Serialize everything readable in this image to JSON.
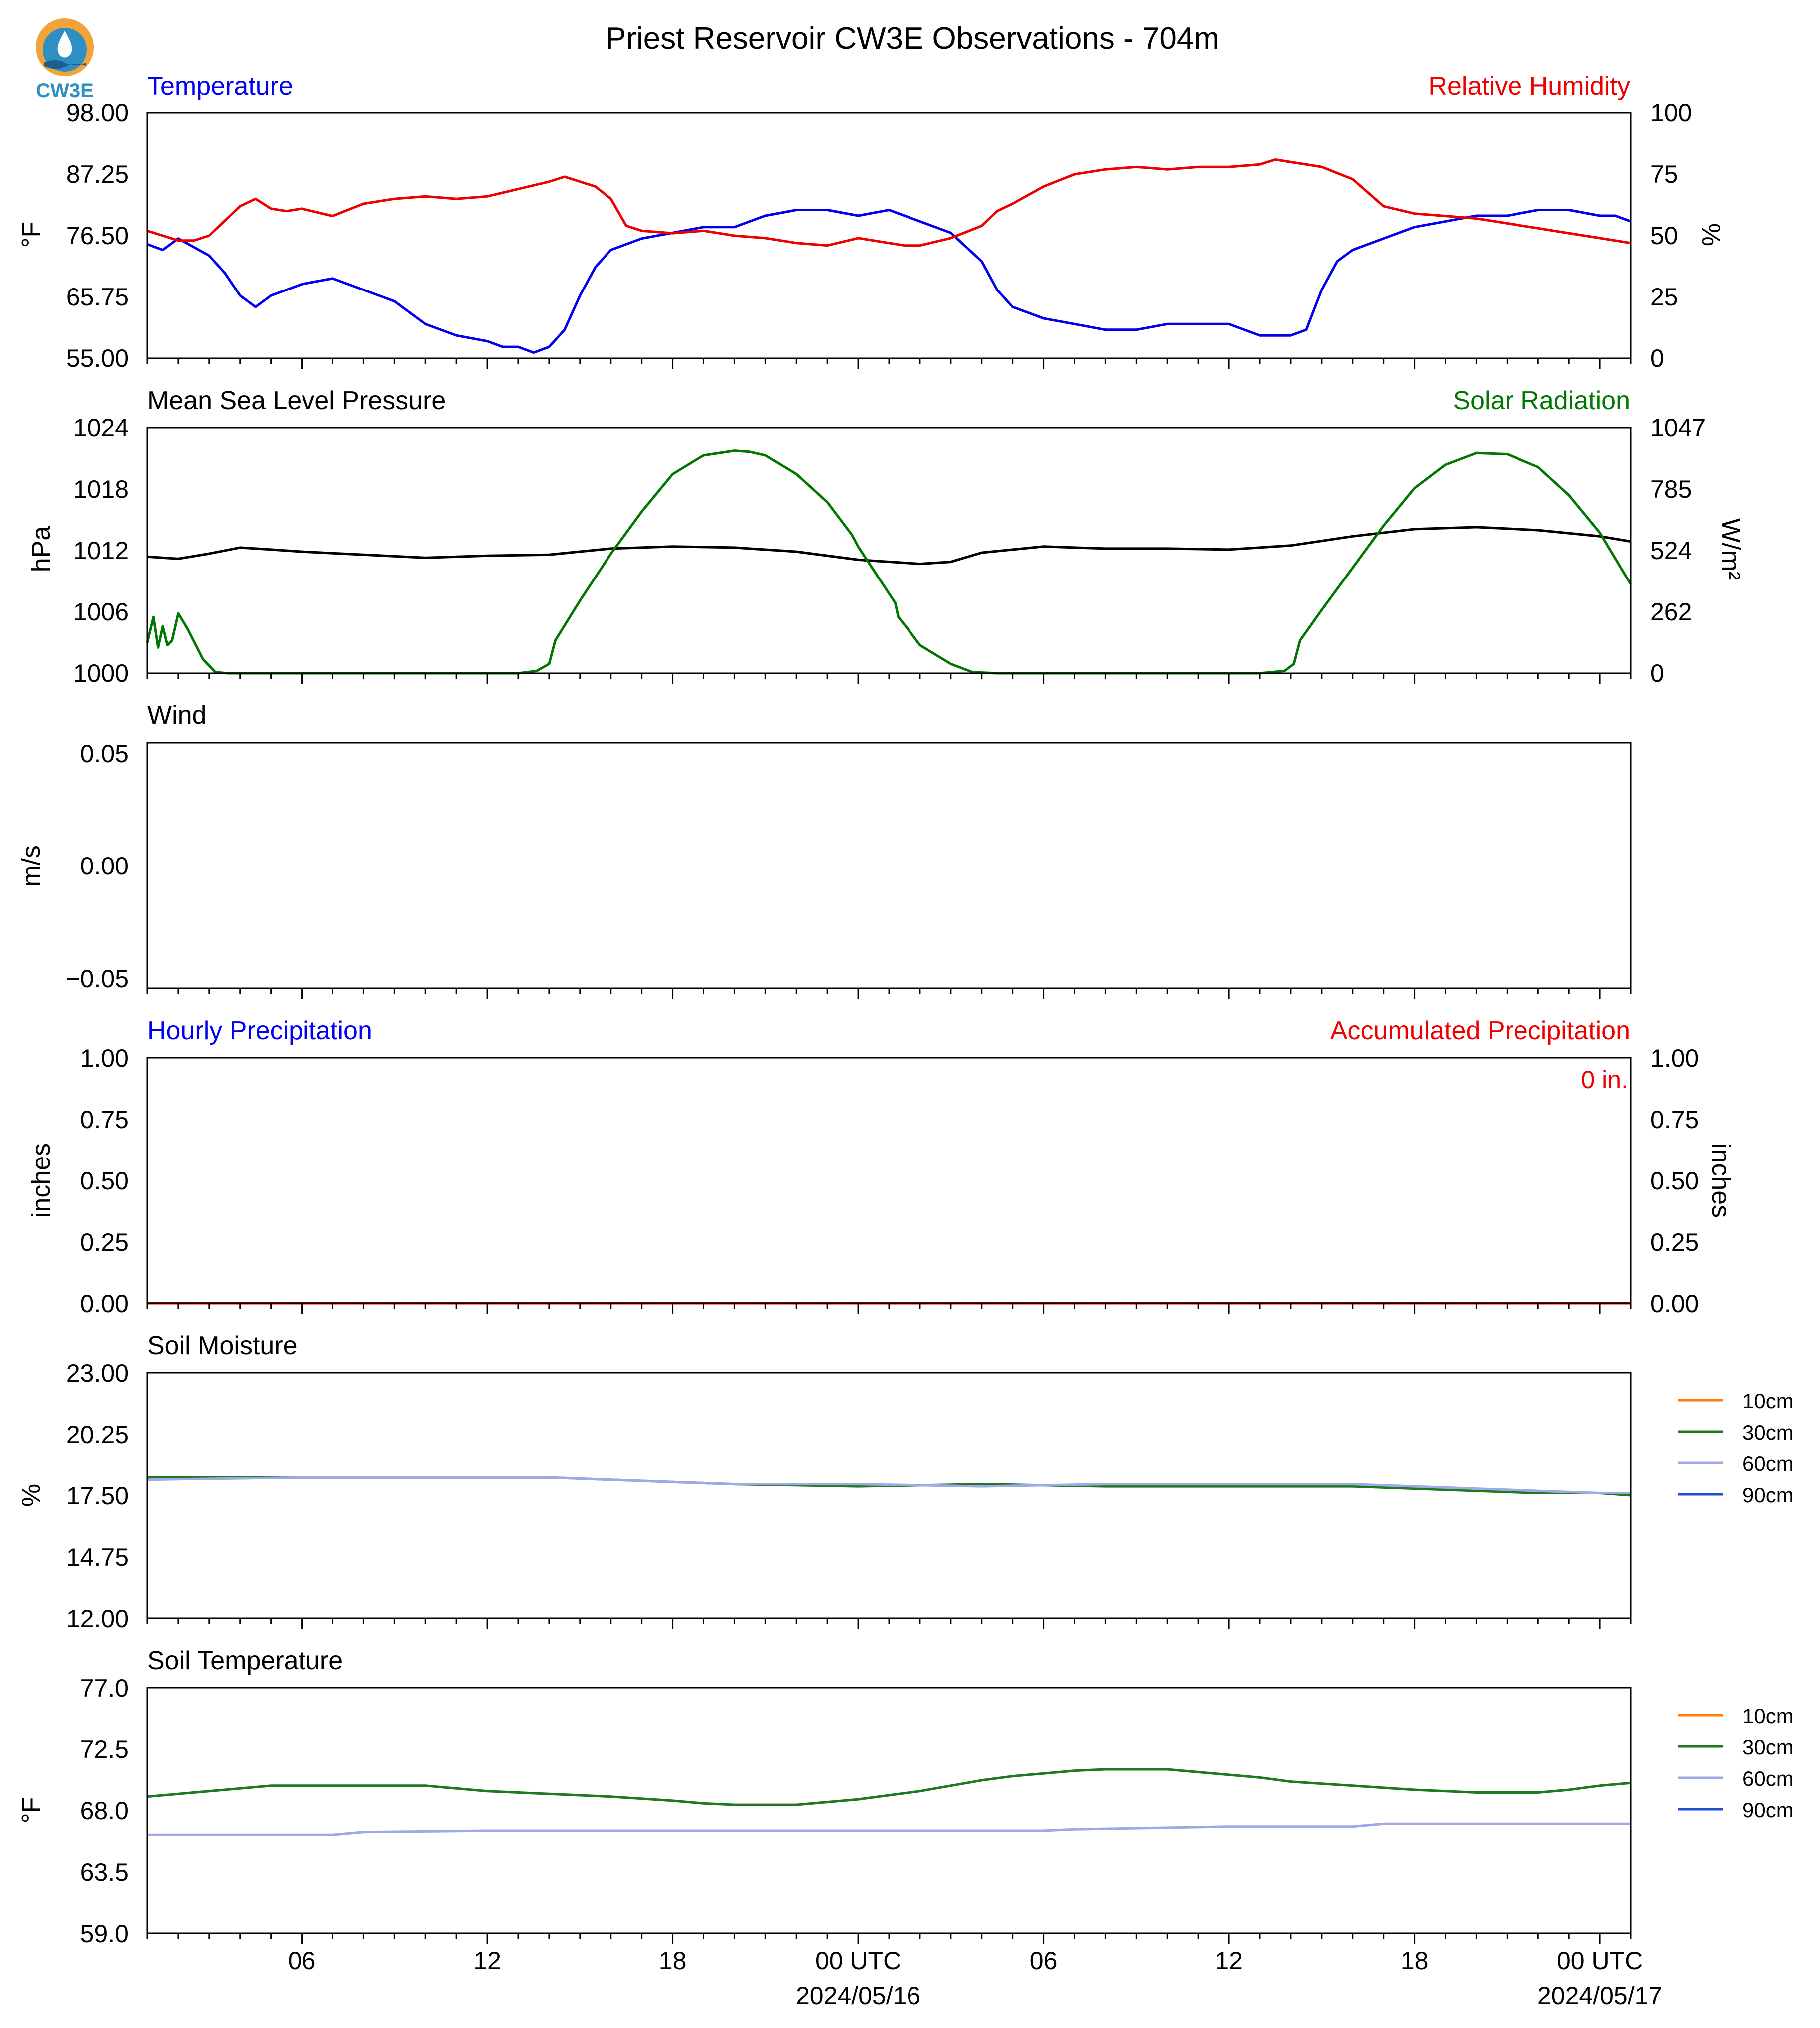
{
  "title": "Priest Reservoir CW3E Observations - 704m",
  "logo_text": "CW3E",
  "colors": {
    "temperature": "#0000ee",
    "humidity": "#ee0000",
    "pressure": "#000000",
    "solar": "#007700",
    "soil_10cm": "#ff7f0e",
    "soil_30cm": "#1f7a1f",
    "soil_60cm": "#9fa8e8",
    "soil_90cm": "#1f4fd0",
    "accum_label": "#ee0000"
  },
  "x_axis": {
    "major_ticks": [
      {
        "hour": 6,
        "label": "06",
        "date": ""
      },
      {
        "hour": 12,
        "label": "12",
        "date": ""
      },
      {
        "hour": 18,
        "label": "18",
        "date": ""
      },
      {
        "hour": 24,
        "label": "00 UTC",
        "date": "2024/05/16"
      },
      {
        "hour": 30,
        "label": "06",
        "date": ""
      },
      {
        "hour": 36,
        "label": "12",
        "date": ""
      },
      {
        "hour": 42,
        "label": "18",
        "date": ""
      },
      {
        "hour": 48,
        "label": "00 UTC",
        "date": "2024/05/17"
      }
    ],
    "range_hours": [
      1,
      49
    ]
  },
  "panels": {
    "temp_rh": {
      "left_title": "Temperature",
      "right_title": "Relative Humidity",
      "left_ylabel": "$^\\circ$F",
      "right_ylabel": "%",
      "left_ticks": [
        "55.00",
        "65.75",
        "76.50",
        "87.25",
        "98.00"
      ],
      "right_ticks": [
        "0",
        "25",
        "50",
        "75",
        "100"
      ]
    },
    "pressure_solar": {
      "left_title": "Mean Sea Level Pressure",
      "right_title": "Solar Radiation",
      "left_ylabel": "hPa",
      "right_ylabel": "W/m²",
      "left_ticks": [
        "1000",
        "1006",
        "1012",
        "1018",
        "1024"
      ],
      "right_ticks": [
        "0",
        "262",
        "524",
        "785",
        "1047"
      ]
    },
    "wind": {
      "left_title": "Wind",
      "left_ylabel": "m/s",
      "left_ticks": [
        "−0.05",
        "0.00",
        "0.05"
      ]
    },
    "precip": {
      "left_title": "Hourly Precipitation",
      "right_title": "Accumulated Precipitation",
      "left_ylabel": "inches",
      "right_ylabel": "inches",
      "left_ticks": [
        "0.00",
        "0.25",
        "0.50",
        "0.75",
        "1.00"
      ],
      "right_ticks": [
        "0.00",
        "0.25",
        "0.50",
        "0.75",
        "1.00"
      ],
      "accum_text": "0 in."
    },
    "soil_moisture": {
      "left_title": "Soil Moisture",
      "left_ylabel": "%",
      "left_ticks": [
        "12.00",
        "14.75",
        "17.50",
        "20.25",
        "23.00"
      ],
      "legend": [
        "10cm",
        "30cm",
        "60cm",
        "90cm"
      ]
    },
    "soil_temp": {
      "left_title": "Soil Temperature",
      "left_ylabel": "$^\\circ$F",
      "left_ticks": [
        "59.0",
        "63.5",
        "68.0",
        "72.5",
        "77.0"
      ],
      "legend": [
        "10cm",
        "30cm",
        "60cm",
        "90cm"
      ]
    }
  },
  "chart_data": [
    {
      "type": "line",
      "title": "Temperature / Relative Humidity",
      "x_unit": "hours since 2024-05-15 00 UTC",
      "ylim": [
        55,
        98
      ],
      "y2lim": [
        0,
        100
      ],
      "series": [
        {
          "name": "Temperature",
          "axis": "left",
          "x": [
            1,
            1.5,
            2,
            3,
            3.5,
            4,
            4.5,
            5,
            6,
            7,
            8,
            9,
            10,
            11,
            12,
            12.5,
            13,
            13.5,
            14,
            14.5,
            15,
            15.5,
            16,
            17,
            18,
            19,
            20,
            21,
            22,
            23,
            24,
            25,
            25.5,
            26,
            27,
            28,
            28.5,
            29,
            30,
            31,
            32,
            33,
            34,
            35,
            36,
            37,
            37.5,
            38,
            38.5,
            39,
            39.5,
            40,
            41,
            42,
            43,
            44,
            45,
            46,
            47,
            48,
            48.5,
            49
          ],
          "y": [
            75,
            74,
            76,
            73,
            70,
            66,
            64,
            66,
            68,
            69,
            67,
            65,
            61,
            59,
            58,
            57,
            57,
            56,
            57,
            60,
            66,
            71,
            74,
            76,
            77,
            78,
            78,
            80,
            81,
            81,
            80,
            81,
            80,
            79,
            77,
            72,
            67,
            64,
            62,
            61,
            60,
            60,
            61,
            61,
            61,
            59,
            59,
            59,
            60,
            67,
            72,
            74,
            76,
            78,
            79,
            80,
            80,
            81,
            81,
            80,
            80,
            79
          ]
        },
        {
          "name": "Relative Humidity",
          "axis": "right",
          "x": [
            1,
            2,
            2.5,
            3,
            3.5,
            4,
            4.5,
            5,
            5.5,
            6,
            7,
            8,
            9,
            10,
            11,
            12,
            13,
            14,
            14.5,
            15,
            15.5,
            16,
            16.5,
            17,
            18,
            19,
            20,
            21,
            22,
            23,
            24,
            25,
            25.5,
            26,
            27,
            28,
            28.5,
            29,
            30,
            31,
            32,
            33,
            34,
            35,
            36,
            37,
            37.5,
            38,
            39,
            40,
            41,
            42,
            43,
            44,
            45,
            46,
            47,
            48,
            49
          ],
          "y": [
            52,
            48,
            48,
            50,
            56,
            62,
            65,
            61,
            60,
            61,
            58,
            63,
            65,
            66,
            65,
            66,
            69,
            72,
            74,
            72,
            70,
            65,
            54,
            52,
            51,
            52,
            50,
            49,
            47,
            46,
            49,
            47,
            46,
            46,
            49,
            54,
            60,
            63,
            70,
            75,
            77,
            78,
            77,
            78,
            78,
            79,
            81,
            80,
            78,
            73,
            62,
            59,
            58,
            57,
            55,
            53,
            51,
            49,
            47
          ]
        }
      ]
    },
    {
      "type": "line",
      "title": "Mean Sea Level Pressure / Solar Radiation",
      "x_unit": "hours since 2024-05-15 00 UTC",
      "ylim": [
        1000,
        1024
      ],
      "y2lim": [
        0,
        1047
      ],
      "series": [
        {
          "name": "Mean Sea Level Pressure",
          "axis": "left",
          "x": [
            1,
            2,
            3,
            4,
            5,
            6,
            8,
            10,
            12,
            14,
            16,
            18,
            20,
            22,
            24,
            26,
            27,
            28,
            30,
            32,
            34,
            36,
            38,
            40,
            42,
            44,
            46,
            48,
            49
          ],
          "y": [
            1011.4,
            1011.2,
            1011.7,
            1012.3,
            1012.1,
            1011.9,
            1011.6,
            1011.3,
            1011.5,
            1011.6,
            1012.2,
            1012.4,
            1012.3,
            1011.9,
            1011.1,
            1010.7,
            1010.9,
            1011.8,
            1012.4,
            1012.2,
            1012.2,
            1012.1,
            1012.5,
            1013.4,
            1014.1,
            1014.3,
            1014.0,
            1013.4,
            1012.9
          ]
        },
        {
          "name": "Solar Radiation",
          "axis": "right",
          "x": [
            1,
            1.2,
            1.35,
            1.5,
            1.65,
            1.8,
            2,
            2.3,
            2.8,
            3.2,
            3.6,
            4,
            8,
            12,
            13,
            13.6,
            14,
            14.2,
            15,
            16,
            17,
            18,
            19,
            20,
            20.5,
            21,
            22,
            23,
            23.8,
            24,
            24.4,
            25,
            25.2,
            25.3,
            25.6,
            26,
            27,
            27.7,
            28.5,
            32,
            36,
            37,
            37.8,
            38.1,
            38.3,
            39,
            40,
            41,
            42,
            43,
            44,
            45,
            46,
            47,
            48,
            49
          ],
          "y": [
            130,
            240,
            110,
            200,
            120,
            140,
            255,
            190,
            60,
            5,
            0,
            0,
            0,
            0,
            0,
            10,
            40,
            140,
            310,
            510,
            690,
            850,
            930,
            950,
            945,
            930,
            850,
            730,
            590,
            540,
            460,
            340,
            300,
            240,
            190,
            120,
            40,
            5,
            0,
            0,
            0,
            0,
            10,
            40,
            140,
            270,
            450,
            630,
            790,
            890,
            940,
            935,
            880,
            760,
            600,
            380
          ]
        }
      ]
    },
    {
      "type": "line",
      "title": "Wind",
      "ylim": [
        -0.055,
        0.055
      ],
      "series": []
    },
    {
      "type": "line",
      "title": "Hourly Precipitation / Accumulated Precipitation",
      "x_unit": "hours since 2024-05-15 00 UTC",
      "ylim": [
        0,
        1
      ],
      "y2lim": [
        0,
        1
      ],
      "series": [
        {
          "name": "Hourly Precipitation",
          "axis": "left",
          "x": [
            1,
            49
          ],
          "y": [
            0,
            0
          ]
        },
        {
          "name": "Accumulated Precipitation",
          "axis": "right",
          "x": [
            1,
            49
          ],
          "y": [
            0,
            0
          ]
        }
      ]
    },
    {
      "type": "line",
      "title": "Soil Moisture",
      "x_unit": "hours since 2024-05-15 00 UTC",
      "ylim": [
        12,
        23
      ],
      "series": [
        {
          "name": "30cm",
          "x": [
            1,
            6,
            12,
            14,
            16,
            18,
            20,
            24,
            28,
            32,
            36,
            40,
            42,
            44,
            46,
            48,
            49
          ],
          "y": [
            18.3,
            18.3,
            18.3,
            18.3,
            18.2,
            18.1,
            18.0,
            17.9,
            18.0,
            17.9,
            17.9,
            17.9,
            17.8,
            17.7,
            17.6,
            17.6,
            17.5
          ]
        },
        {
          "name": "60cm",
          "x": [
            1,
            6,
            12,
            14,
            16,
            18,
            20,
            24,
            28,
            32,
            36,
            40,
            42,
            44,
            46,
            48,
            49
          ],
          "y": [
            18.2,
            18.3,
            18.3,
            18.3,
            18.2,
            18.1,
            18.0,
            18.0,
            17.9,
            18.0,
            18.0,
            18.0,
            17.9,
            17.8,
            17.7,
            17.6,
            17.6
          ]
        }
      ]
    },
    {
      "type": "line",
      "title": "Soil Temperature",
      "x_unit": "hours since 2024-05-15 00 UTC",
      "ylim": [
        59,
        77
      ],
      "series": [
        {
          "name": "30cm",
          "x": [
            1,
            2,
            3,
            4,
            5,
            6,
            8,
            10,
            11,
            12,
            14,
            16,
            18,
            19,
            20,
            22,
            23,
            24,
            25,
            26,
            27,
            28,
            29,
            30,
            31,
            32,
            34,
            35,
            36,
            37,
            38,
            40,
            42,
            44,
            46,
            47,
            48,
            49
          ],
          "y": [
            69.0,
            69.2,
            69.4,
            69.6,
            69.8,
            69.8,
            69.8,
            69.8,
            69.6,
            69.4,
            69.2,
            69.0,
            68.7,
            68.5,
            68.4,
            68.4,
            68.6,
            68.8,
            69.1,
            69.4,
            69.8,
            70.2,
            70.5,
            70.7,
            70.9,
            71.0,
            71.0,
            70.8,
            70.6,
            70.4,
            70.1,
            69.8,
            69.5,
            69.3,
            69.3,
            69.5,
            69.8,
            70.0
          ]
        },
        {
          "name": "60cm",
          "x": [
            1,
            7,
            8,
            12,
            18,
            24,
            30,
            31,
            36,
            40,
            41,
            49
          ],
          "y": [
            66.2,
            66.2,
            66.4,
            66.5,
            66.5,
            66.5,
            66.5,
            66.6,
            66.8,
            66.8,
            67.0,
            67.0
          ]
        }
      ]
    }
  ]
}
